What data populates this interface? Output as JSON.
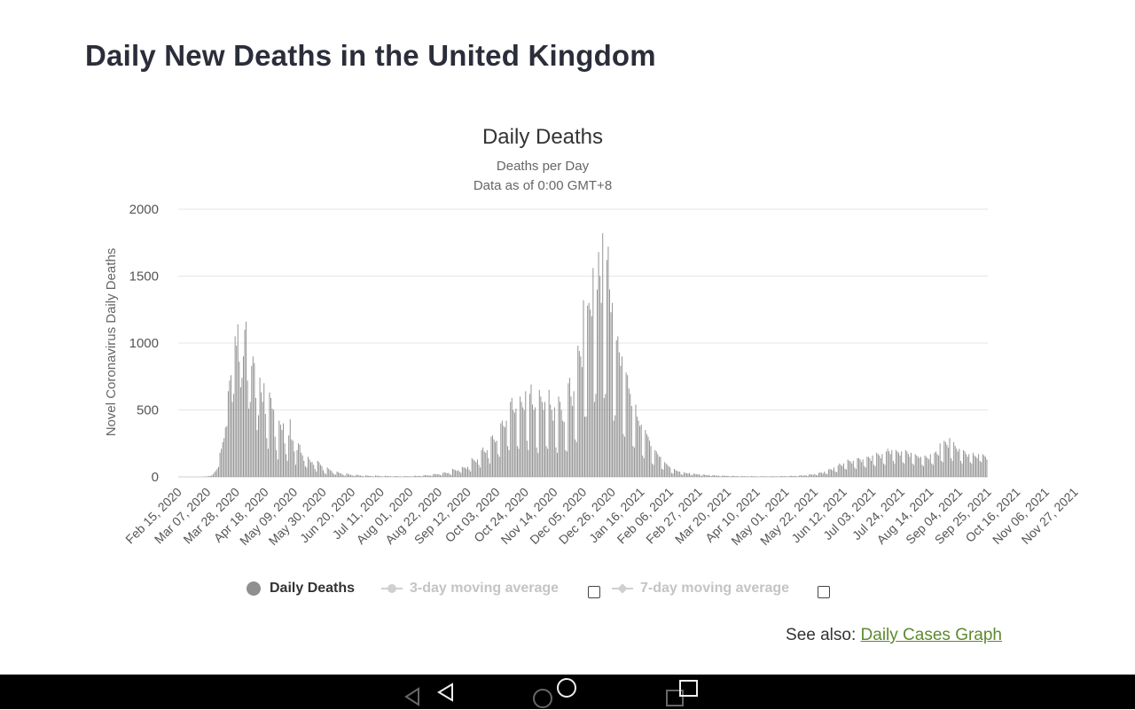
{
  "page": {
    "title": "Daily New Deaths in the United Kingdom"
  },
  "legend": {
    "daily": "Daily Deaths",
    "avg3": "3-day moving average",
    "avg7": "7-day moving average"
  },
  "see_also": {
    "prefix": "See also:",
    "link": "Daily Cases Graph"
  },
  "nav_icons": [
    "back-triangle-icon",
    "home-circle-icon",
    "recent-apps-square-icon"
  ],
  "colors": {
    "bar": "#8f8f8f",
    "grid": "#e6e6e6",
    "link": "#5d8a2e",
    "legend_inactive": "#c4c4c4"
  },
  "chart_data": {
    "type": "bar",
    "title": "Daily Deaths",
    "subtitle": [
      "Deaths per Day",
      "Data as of 0:00 GMT+8"
    ],
    "ylabel": "Novel Coronavirus Daily Deaths",
    "ylim": [
      0,
      2000
    ],
    "yticks": [
      0,
      500,
      1000,
      1500,
      2000
    ],
    "grid": true,
    "x_tick_labels": [
      "Feb 15, 2020",
      "Mar 07, 2020",
      "Mar 28, 2020",
      "Apr 18, 2020",
      "May 09, 2020",
      "May 30, 2020",
      "Jun 20, 2020",
      "Jul 11, 2020",
      "Aug 01, 2020",
      "Aug 22, 2020",
      "Sep 12, 2020",
      "Oct 03, 2020",
      "Oct 24, 2020",
      "Nov 14, 2020",
      "Dec 05, 2020",
      "Dec 26, 2020",
      "Jan 16, 2021",
      "Feb 06, 2021",
      "Feb 27, 2021",
      "Mar 20, 2021",
      "Apr 10, 2021",
      "May 01, 2021",
      "May 22, 2021",
      "Jun 12, 2021",
      "Jul 03, 2021",
      "Jul 24, 2021",
      "Aug 14, 2021",
      "Sep 04, 2021",
      "Sep 25, 2021",
      "Oct 16, 2021",
      "Nov 06, 2021",
      "Nov 27, 2021"
    ],
    "series": [
      {
        "name": "Daily Deaths",
        "weekly_values": [
          [
            0,
            0,
            0,
            0,
            0,
            0,
            0
          ],
          [
            0,
            0,
            0,
            0,
            0,
            0,
            0
          ],
          [
            0,
            0,
            0,
            1,
            1,
            2,
            3
          ],
          [
            4,
            6,
            8,
            10,
            20,
            35,
            45
          ],
          [
            60,
            75,
            180,
            210,
            260,
            290,
            370
          ],
          [
            380,
            640,
            720,
            760,
            560,
            620,
            1050
          ],
          [
            980,
            1140,
            860,
            670,
            740,
            900,
            1100
          ],
          [
            1160,
            720,
            510,
            560,
            830,
            900,
            850
          ],
          [
            590,
            350,
            460,
            740,
            630,
            560,
            700
          ],
          [
            470,
            290,
            210,
            630,
            590,
            510,
            500
          ],
          [
            300,
            200,
            130,
            420,
            390,
            350,
            400
          ],
          [
            250,
            170,
            120,
            310,
            430,
            280,
            270
          ],
          [
            190,
            90,
            200,
            250,
            240,
            180,
            160
          ],
          [
            120,
            80,
            70,
            150,
            130,
            110,
            110
          ],
          [
            90,
            60,
            40,
            120,
            110,
            90,
            80
          ],
          [
            50,
            30,
            20,
            70,
            60,
            50,
            45
          ],
          [
            30,
            20,
            15,
            40,
            35,
            28,
            25
          ],
          [
            18,
            12,
            8,
            25,
            22,
            18,
            15
          ],
          [
            12,
            8,
            5,
            16,
            14,
            12,
            10
          ],
          [
            8,
            5,
            3,
            12,
            10,
            9,
            7
          ],
          [
            6,
            4,
            2,
            10,
            9,
            8,
            6
          ],
          [
            5,
            3,
            2,
            8,
            7,
            6,
            5
          ],
          [
            4,
            3,
            2,
            6,
            6,
            5,
            4
          ],
          [
            4,
            2,
            2,
            6,
            5,
            5,
            4
          ],
          [
            5,
            3,
            2,
            8,
            8,
            7,
            6
          ],
          [
            8,
            5,
            4,
            12,
            14,
            12,
            10
          ],
          [
            12,
            10,
            6,
            20,
            22,
            20,
            18
          ],
          [
            20,
            14,
            10,
            30,
            35,
            30,
            28
          ],
          [
            30,
            20,
            15,
            60,
            55,
            50,
            45
          ],
          [
            50,
            40,
            30,
            75,
            70,
            70,
            60
          ],
          [
            75,
            55,
            40,
            140,
            130,
            120,
            110
          ],
          [
            130,
            90,
            70,
            200,
            220,
            190,
            180
          ],
          [
            200,
            140,
            100,
            300,
            310,
            280,
            260
          ],
          [
            270,
            170,
            150,
            400,
            420,
            380,
            370
          ],
          [
            420,
            230,
            200,
            560,
            590,
            500,
            480
          ],
          [
            510,
            230,
            210,
            600,
            560,
            520,
            500
          ],
          [
            640,
            270,
            200,
            620,
            690,
            540,
            500
          ],
          [
            520,
            220,
            180,
            650,
            600,
            560,
            500
          ],
          [
            560,
            230,
            210,
            650,
            540,
            500,
            420
          ],
          [
            520,
            220,
            180,
            600,
            560,
            500,
            420
          ],
          [
            410,
            200,
            190,
            700,
            740,
            600,
            530
          ],
          [
            640,
            280,
            260,
            980,
            940,
            900,
            820
          ],
          [
            1320,
            450,
            450,
            1280,
            1300,
            1250,
            1200
          ],
          [
            1560,
            560,
            620,
            1400,
            1680,
            1500,
            1300
          ],
          [
            1820,
            590,
            620,
            1620,
            1720,
            1400,
            1230
          ],
          [
            1300,
            420,
            460,
            1020,
            1050,
            930,
            830
          ],
          [
            900,
            320,
            300,
            780,
            760,
            660,
            620
          ],
          [
            530,
            230,
            220,
            540,
            450,
            420,
            380
          ],
          [
            390,
            160,
            140,
            350,
            320,
            300,
            270
          ],
          [
            230,
            100,
            90,
            200,
            190,
            170,
            150
          ],
          [
            150,
            60,
            55,
            110,
            100,
            90,
            80
          ],
          [
            70,
            30,
            25,
            60,
            50,
            45,
            40
          ],
          [
            40,
            20,
            15,
            35,
            30,
            28,
            25
          ],
          [
            30,
            15,
            12,
            25,
            22,
            20,
            18
          ],
          [
            20,
            10,
            8,
            18,
            16,
            14,
            12
          ],
          [
            15,
            8,
            6,
            14,
            12,
            10,
            9
          ],
          [
            10,
            5,
            4,
            10,
            9,
            8,
            7
          ],
          [
            8,
            4,
            3,
            8,
            7,
            6,
            5
          ],
          [
            6,
            3,
            2,
            6,
            5,
            5,
            4
          ],
          [
            5,
            3,
            2,
            6,
            5,
            5,
            4
          ],
          [
            4,
            2,
            2,
            5,
            5,
            4,
            4
          ],
          [
            4,
            2,
            2,
            5,
            5,
            4,
            4
          ],
          [
            5,
            3,
            2,
            6,
            6,
            5,
            5
          ],
          [
            6,
            3,
            3,
            8,
            8,
            7,
            6
          ],
          [
            8,
            4,
            4,
            12,
            12,
            10,
            9
          ],
          [
            14,
            8,
            7,
            18,
            20,
            17,
            15
          ],
          [
            22,
            14,
            12,
            30,
            35,
            30,
            25
          ],
          [
            40,
            25,
            20,
            55,
            60,
            55,
            50
          ],
          [
            70,
            40,
            35,
            85,
            100,
            90,
            80
          ],
          [
            100,
            60,
            55,
            130,
            120,
            115,
            100
          ],
          [
            120,
            70,
            60,
            140,
            140,
            130,
            110
          ],
          [
            130,
            80,
            70,
            150,
            150,
            140,
            120
          ],
          [
            160,
            90,
            80,
            180,
            170,
            160,
            140
          ],
          [
            170,
            100,
            90,
            190,
            210,
            190,
            170
          ],
          [
            200,
            120,
            100,
            200,
            190,
            180,
            160
          ],
          [
            190,
            110,
            100,
            200,
            190,
            170,
            150
          ],
          [
            180,
            100,
            90,
            170,
            160,
            150,
            140
          ],
          [
            150,
            90,
            80,
            160,
            150,
            140,
            130
          ],
          [
            170,
            100,
            90,
            180,
            190,
            170,
            160
          ],
          [
            250,
            120,
            110,
            270,
            260,
            240,
            220
          ],
          [
            290,
            140,
            120,
            260,
            230,
            210,
            190
          ],
          [
            210,
            120,
            100,
            200,
            190,
            170,
            150
          ],
          [
            170,
            110,
            100,
            180,
            160,
            150,
            140
          ],
          [
            170,
            120,
            110,
            170,
            160,
            150,
            130
          ]
        ]
      }
    ]
  }
}
